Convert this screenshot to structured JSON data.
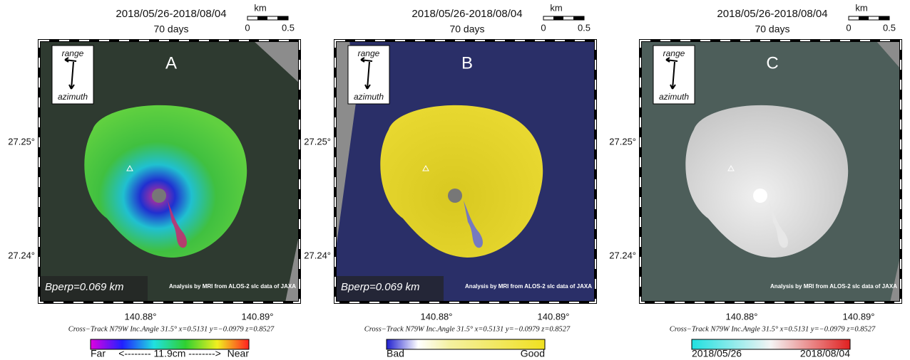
{
  "panels": [
    {
      "label": "A",
      "date_range": "2018/05/26-2018/08/04",
      "duration": "70 days",
      "scale": {
        "unit": "km",
        "ticks": [
          "0",
          "0.5"
        ]
      },
      "direction": {
        "range": "range",
        "azimuth": "azimuth"
      },
      "latitudes": [
        "27.25°",
        "27.24°"
      ],
      "longitudes": [
        "140.88°",
        "140.89°"
      ],
      "baseline": "Bperp=0.069 km",
      "credit": "Analysis by MRI from ALOS-2 slc data of JAXA",
      "geometry": "Cross−Track N79W  Inc.Angle 31.5°  x=0.5131  y=−0.0979  z=0.8527",
      "legend": {
        "left": "Far",
        "center": "<-------- 11.9cm -------->",
        "right": "Near"
      }
    },
    {
      "label": "B",
      "date_range": "2018/05/26-2018/08/04",
      "duration": "70 days",
      "scale": {
        "unit": "km",
        "ticks": [
          "0",
          "0.5"
        ]
      },
      "direction": {
        "range": "range",
        "azimuth": "azimuth"
      },
      "latitudes": [
        "27.25°",
        "27.24°"
      ],
      "longitudes": [
        "140.88°",
        "140.89°"
      ],
      "baseline": "Bperp=0.069 km",
      "credit": "Analysis by MRI from ALOS-2 slc data of JAXA",
      "geometry": "Cross−Track N79W  Inc.Angle 31.5°  x=0.5131  y=−0.0979  z=0.8527",
      "legend": {
        "left": "Bad",
        "right": "Good"
      }
    },
    {
      "label": "C",
      "date_range": "2018/05/26-2018/08/04",
      "duration": "70 days",
      "scale": {
        "unit": "km",
        "ticks": [
          "0",
          "0.5"
        ]
      },
      "direction": {
        "range": "range",
        "azimuth": "azimuth"
      },
      "latitudes": [
        "27.25°",
        "27.24°"
      ],
      "longitudes": [
        "140.88°",
        "140.89°"
      ],
      "credit": "Analysis by MRI from ALOS-2 slc data of JAXA",
      "geometry": "Cross−Track N79W  Inc.Angle 31.5°  x=0.5131  y=−0.0979  z=0.8527",
      "legend": {
        "left": "2018/05/26",
        "right": "2018/08/04"
      }
    }
  ]
}
